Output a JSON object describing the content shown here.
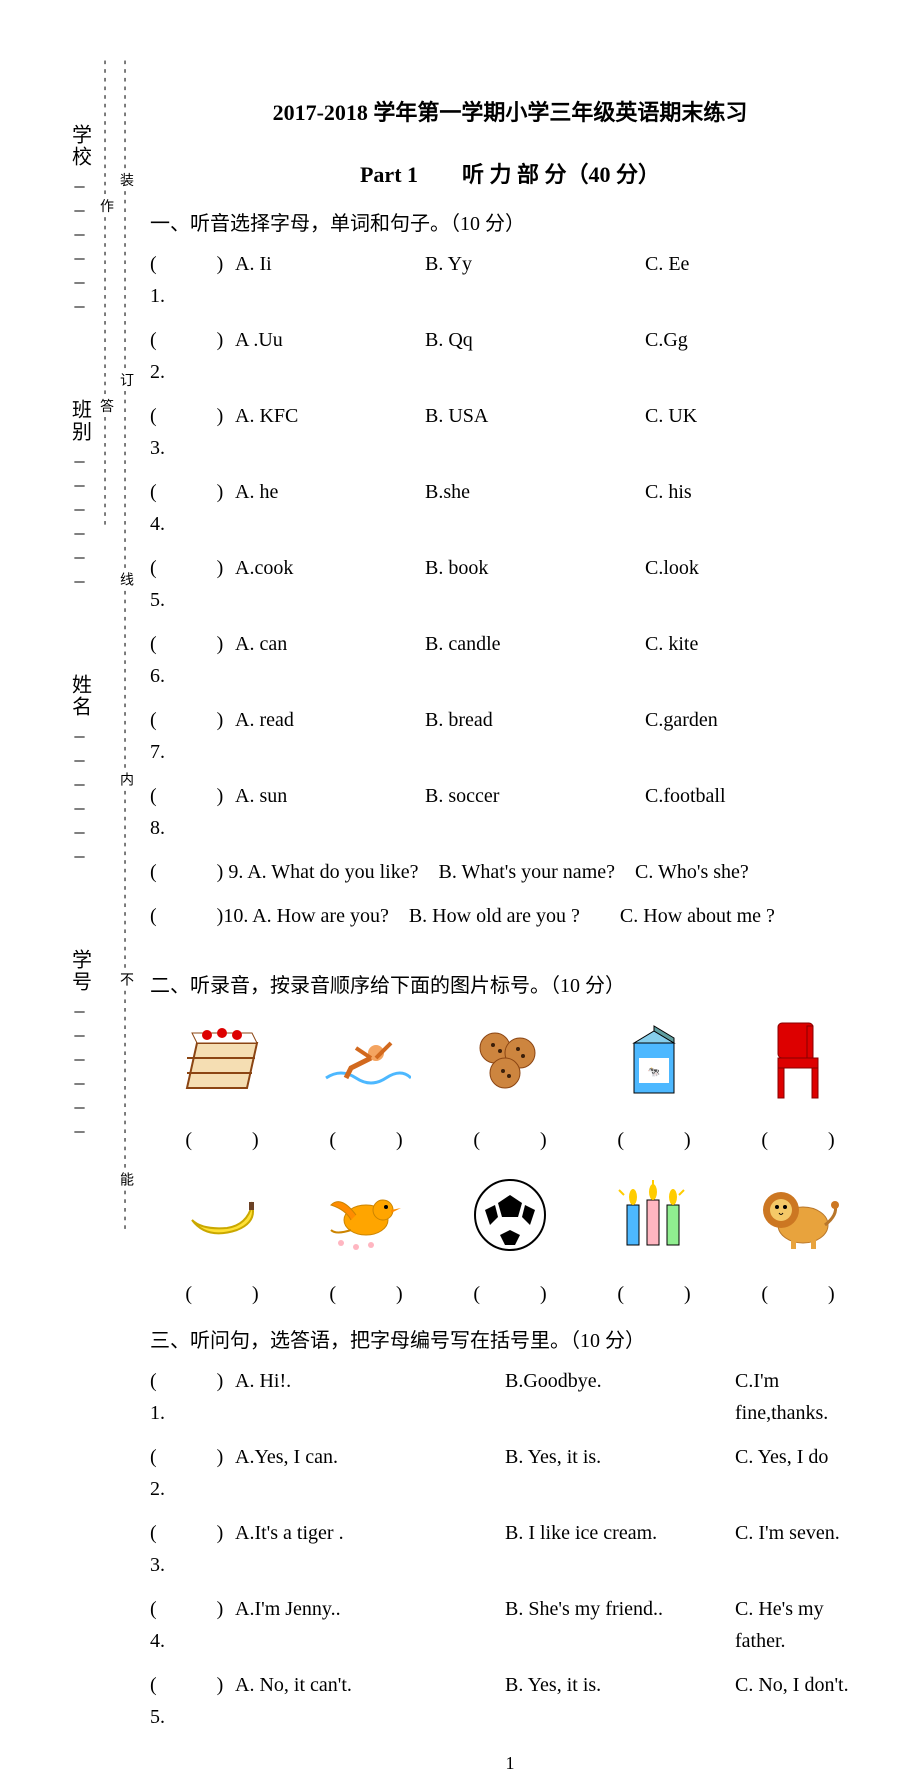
{
  "side": {
    "school": "学校",
    "class": "班别",
    "name": "姓名",
    "number": "学号",
    "blank": "______"
  },
  "sideline": "-------------装---------------------订---------------------线---------------------内---------------------不---------------------能---------------------作---------------------答-------------",
  "title": "2017-2018 学年第一学期小学三年级英语期末练习",
  "subtitle": "Part 1　　听 力 部 分（40 分）",
  "section1": {
    "head": "一、听音选择字母，单词和句子。（10 分）",
    "rows": [
      {
        "n": "1.",
        "a": "A. Ii",
        "b": "B. Yy",
        "c": "C. Ee"
      },
      {
        "n": "2.",
        "a": "A .Uu",
        "b": "B. Qq",
        "c": "C.Gg"
      },
      {
        "n": "3.",
        "a": "A. KFC",
        "b": "B. USA",
        "c": "C. UK"
      },
      {
        "n": "4.",
        "a": "A. he",
        "b": "B.she",
        "c": "C. his"
      },
      {
        "n": "5.",
        "a": "A.cook",
        "b": "B. book",
        "c": "C.look"
      },
      {
        "n": "6.",
        "a": "A. can",
        "b": "B. candle",
        "c": "C. kite"
      },
      {
        "n": "7.",
        "a": "A. read",
        "b": "B. bread",
        "c": "C.garden"
      },
      {
        "n": "8.",
        "a": "A. sun",
        "b": "B. soccer",
        "c": "C.football"
      }
    ],
    "row9": "(　　　) 9. A. What do you like?　B. What's your name?　C. Who's she?",
    "row10": "(　　　)10. A. How are you?　B. How old are you ?　　C. How about me ?"
  },
  "section2": {
    "head": "二、听录音，按录音顺序给下面的图片标号。（10 分）",
    "paren": "(　　　)",
    "icons": {
      "row1": [
        "cake",
        "swimmer",
        "cookies",
        "milk",
        "chair"
      ],
      "row2": [
        "banana",
        "bird",
        "soccer",
        "candles",
        "lion"
      ]
    }
  },
  "section3": {
    "head": "三、听问句，选答语，把字母编号写在括号里。（10 分）",
    "rows": [
      {
        "n": "1.",
        "a": "A. Hi!.",
        "b": "B.Goodbye.",
        "c": "C.I'm fine,thanks."
      },
      {
        "n": "2.",
        "a": "A.Yes, I can.",
        "b": "B. Yes, it is.",
        "c": "C. Yes, I do"
      },
      {
        "n": "3.",
        "a": "A.It's a tiger .",
        "b": "B. I like ice cream.",
        "c": "C. I'm seven."
      },
      {
        "n": "4.",
        "a": "A.I'm Jenny..",
        "b": "B. She's my friend..",
        "c": "C. He's my father."
      },
      {
        "n": "5.",
        "a": "A. No, it can't.",
        "b": "B. Yes, it is.",
        "c": "C. No, I don't."
      }
    ]
  },
  "paren_label": "(　　　) ",
  "page": "1"
}
